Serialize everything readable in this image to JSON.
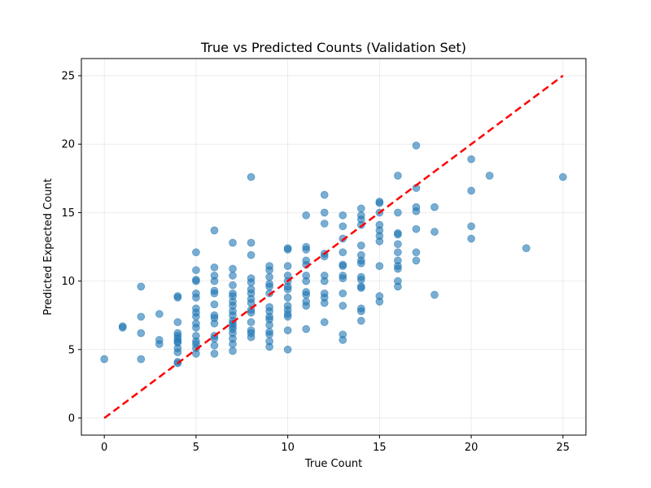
{
  "chart_data": {
    "type": "scatter",
    "title": "True vs Predicted Counts (Validation Set)",
    "xlabel": "True Count",
    "ylabel": "Predicted Expected Count",
    "xlim": [
      -1.25,
      26.25
    ],
    "ylim": [
      -1.25,
      26.25
    ],
    "xticks": [
      0,
      5,
      10,
      15,
      20,
      25
    ],
    "yticks": [
      0,
      5,
      10,
      15,
      20,
      25
    ],
    "grid": true,
    "point_color": "#1f77b4",
    "point_alpha": 0.6,
    "reference_line": {
      "x": [
        0,
        25
      ],
      "y": [
        0,
        25
      ],
      "color": "#ff0000",
      "style": "dashed"
    },
    "points": [
      [
        0,
        4.3
      ],
      [
        1,
        6.7
      ],
      [
        1,
        6.6
      ],
      [
        2,
        9.6
      ],
      [
        2,
        7.4
      ],
      [
        2,
        6.2
      ],
      [
        2,
        4.3
      ],
      [
        3,
        7.6
      ],
      [
        3,
        5.7
      ],
      [
        3,
        5.4
      ],
      [
        4,
        8.9
      ],
      [
        4,
        8.8
      ],
      [
        4,
        7.0
      ],
      [
        4,
        6.2
      ],
      [
        4,
        6.0
      ],
      [
        4,
        5.8
      ],
      [
        4,
        5.6
      ],
      [
        4,
        5.5
      ],
      [
        4,
        5.1
      ],
      [
        4,
        4.8
      ],
      [
        4,
        4.1
      ],
      [
        4,
        4.0
      ],
      [
        5,
        12.1
      ],
      [
        5,
        10.8
      ],
      [
        5,
        10.1
      ],
      [
        5,
        10.0
      ],
      [
        5,
        9.1
      ],
      [
        5,
        8.8
      ],
      [
        5,
        8.0
      ],
      [
        5,
        7.7
      ],
      [
        5,
        7.4
      ],
      [
        5,
        6.9
      ],
      [
        5,
        6.6
      ],
      [
        5,
        6.0
      ],
      [
        5,
        5.6
      ],
      [
        5,
        5.4
      ],
      [
        5,
        5.1
      ],
      [
        5,
        4.7
      ],
      [
        6,
        13.7
      ],
      [
        6,
        11.0
      ],
      [
        6,
        10.4
      ],
      [
        6,
        10.0
      ],
      [
        6,
        9.3
      ],
      [
        6,
        9.1
      ],
      [
        6,
        8.3
      ],
      [
        6,
        7.5
      ],
      [
        6,
        7.3
      ],
      [
        6,
        6.9
      ],
      [
        6,
        6.0
      ],
      [
        6,
        5.8
      ],
      [
        6,
        5.3
      ],
      [
        6,
        4.7
      ],
      [
        7,
        12.8
      ],
      [
        7,
        10.9
      ],
      [
        7,
        10.4
      ],
      [
        7,
        9.7
      ],
      [
        7,
        9.1
      ],
      [
        7,
        8.9
      ],
      [
        7,
        8.5
      ],
      [
        7,
        8.2
      ],
      [
        7,
        7.8
      ],
      [
        7,
        7.5
      ],
      [
        7,
        7.1
      ],
      [
        7,
        6.9
      ],
      [
        7,
        6.7
      ],
      [
        7,
        6.5
      ],
      [
        7,
        6.2
      ],
      [
        7,
        5.8
      ],
      [
        7,
        5.4
      ],
      [
        7,
        4.9
      ],
      [
        8,
        17.6
      ],
      [
        8,
        12.8
      ],
      [
        8,
        11.9
      ],
      [
        8,
        10.2
      ],
      [
        8,
        9.9
      ],
      [
        8,
        9.4
      ],
      [
        8,
        9.1
      ],
      [
        8,
        8.7
      ],
      [
        8,
        8.4
      ],
      [
        8,
        7.9
      ],
      [
        8,
        7.7
      ],
      [
        8,
        7.0
      ],
      [
        8,
        6.4
      ],
      [
        8,
        6.2
      ],
      [
        8,
        5.9
      ],
      [
        9,
        11.1
      ],
      [
        9,
        10.8
      ],
      [
        9,
        10.3
      ],
      [
        9,
        9.8
      ],
      [
        9,
        9.6
      ],
      [
        9,
        9.1
      ],
      [
        9,
        8.1
      ],
      [
        9,
        7.8
      ],
      [
        9,
        7.4
      ],
      [
        9,
        7.2
      ],
      [
        9,
        6.8
      ],
      [
        9,
        6.3
      ],
      [
        9,
        6.1
      ],
      [
        9,
        5.6
      ],
      [
        9,
        5.2
      ],
      [
        10,
        12.4
      ],
      [
        10,
        12.3
      ],
      [
        10,
        11.1
      ],
      [
        10,
        10.4
      ],
      [
        10,
        10.0
      ],
      [
        10,
        9.6
      ],
      [
        10,
        9.4
      ],
      [
        10,
        8.8
      ],
      [
        10,
        8.2
      ],
      [
        10,
        7.9
      ],
      [
        10,
        7.6
      ],
      [
        10,
        7.4
      ],
      [
        10,
        6.4
      ],
      [
        10,
        5.0
      ],
      [
        11,
        14.8
      ],
      [
        11,
        12.5
      ],
      [
        11,
        12.3
      ],
      [
        11,
        11.5
      ],
      [
        11,
        11.2
      ],
      [
        11,
        10.4
      ],
      [
        11,
        10.0
      ],
      [
        11,
        9.2
      ],
      [
        11,
        9.0
      ],
      [
        11,
        8.5
      ],
      [
        11,
        8.2
      ],
      [
        11,
        6.5
      ],
      [
        12,
        16.3
      ],
      [
        12,
        15.0
      ],
      [
        12,
        14.2
      ],
      [
        12,
        12.0
      ],
      [
        12,
        11.8
      ],
      [
        12,
        10.4
      ],
      [
        12,
        10.0
      ],
      [
        12,
        9.1
      ],
      [
        12,
        8.8
      ],
      [
        12,
        8.4
      ],
      [
        12,
        7.0
      ],
      [
        13,
        14.8
      ],
      [
        13,
        14.0
      ],
      [
        13,
        13.1
      ],
      [
        13,
        12.1
      ],
      [
        13,
        11.2
      ],
      [
        13,
        11.1
      ],
      [
        13,
        10.4
      ],
      [
        13,
        10.2
      ],
      [
        13,
        9.1
      ],
      [
        13,
        8.2
      ],
      [
        13,
        6.1
      ],
      [
        13,
        5.7
      ],
      [
        14,
        15.3
      ],
      [
        14,
        14.8
      ],
      [
        14,
        14.5
      ],
      [
        14,
        14.1
      ],
      [
        14,
        12.6
      ],
      [
        14,
        11.9
      ],
      [
        14,
        11.5
      ],
      [
        14,
        11.3
      ],
      [
        14,
        10.3
      ],
      [
        14,
        10.1
      ],
      [
        14,
        9.6
      ],
      [
        14,
        9.5
      ],
      [
        14,
        8.0
      ],
      [
        14,
        7.8
      ],
      [
        14,
        7.1
      ],
      [
        15,
        15.8
      ],
      [
        15,
        15.7
      ],
      [
        15,
        15.0
      ],
      [
        15,
        14.1
      ],
      [
        15,
        13.7
      ],
      [
        15,
        13.3
      ],
      [
        15,
        12.9
      ],
      [
        15,
        11.1
      ],
      [
        15,
        8.9
      ],
      [
        15,
        8.5
      ],
      [
        16,
        17.7
      ],
      [
        16,
        15.0
      ],
      [
        16,
        13.5
      ],
      [
        16,
        13.4
      ],
      [
        16,
        12.7
      ],
      [
        16,
        12.1
      ],
      [
        16,
        11.5
      ],
      [
        16,
        11.1
      ],
      [
        16,
        10.9
      ],
      [
        16,
        10.0
      ],
      [
        16,
        9.6
      ],
      [
        17,
        19.9
      ],
      [
        17,
        16.8
      ],
      [
        17,
        15.4
      ],
      [
        17,
        15.1
      ],
      [
        17,
        13.8
      ],
      [
        17,
        12.1
      ],
      [
        17,
        11.5
      ],
      [
        18,
        15.4
      ],
      [
        18,
        13.6
      ],
      [
        18,
        9.0
      ],
      [
        20,
        18.9
      ],
      [
        20,
        16.6
      ],
      [
        20,
        14.0
      ],
      [
        20,
        13.1
      ],
      [
        21,
        17.7
      ],
      [
        23,
        12.4
      ],
      [
        25,
        17.6
      ]
    ]
  }
}
